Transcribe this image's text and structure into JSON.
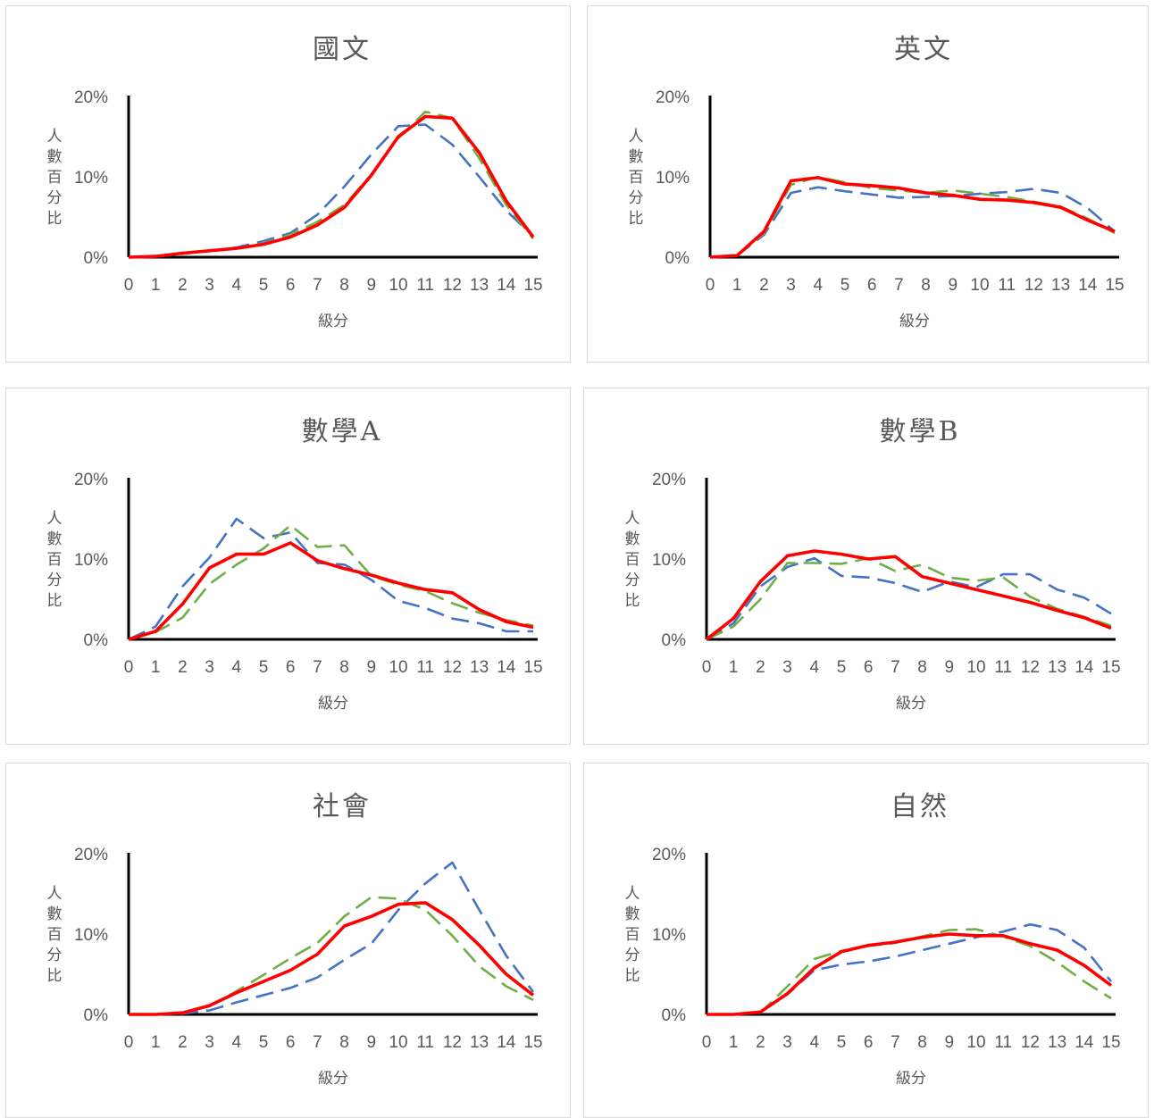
{
  "chart_data": [
    {
      "type": "line",
      "title": "國文",
      "xlabel": "級分",
      "ylabel": "人數百分比",
      "x": [
        0,
        1,
        2,
        3,
        4,
        5,
        6,
        7,
        8,
        9,
        10,
        11,
        12,
        13,
        14,
        15
      ],
      "ylim": [
        0,
        20
      ],
      "yticks": [
        "0%",
        "10%",
        "20%"
      ],
      "series": [
        {
          "color": "#ff0000",
          "style": "solid",
          "values": [
            0,
            0.1,
            0.5,
            0.8,
            1.1,
            1.6,
            2.5,
            4.0,
            6.2,
            10.2,
            15.0,
            17.5,
            17.3,
            13.0,
            7.0,
            2.5
          ]
        },
        {
          "color": "#4472c4",
          "style": "dashed",
          "values": [
            0,
            0.1,
            0.5,
            0.8,
            1.2,
            2.0,
            3.0,
            5.3,
            8.8,
            12.8,
            16.3,
            16.5,
            14.0,
            10.0,
            5.8,
            2.6
          ]
        },
        {
          "color": "#70ad47",
          "style": "dashed",
          "values": [
            0,
            0.1,
            0.4,
            0.8,
            1.1,
            1.7,
            2.8,
            4.4,
            6.5,
            10.3,
            14.8,
            18.1,
            17.3,
            12.3,
            6.5,
            2.3
          ]
        }
      ]
    },
    {
      "type": "line",
      "title": "英文",
      "xlabel": "級分",
      "ylabel": "人數百分比",
      "x": [
        0,
        1,
        2,
        3,
        4,
        5,
        6,
        7,
        8,
        9,
        10,
        11,
        12,
        13,
        14,
        15
      ],
      "ylim": [
        0,
        20
      ],
      "yticks": [
        "0%",
        "10%",
        "20%"
      ],
      "series": [
        {
          "color": "#ff0000",
          "style": "solid",
          "values": [
            0,
            0.2,
            3.2,
            9.5,
            9.9,
            9.1,
            8.9,
            8.6,
            8.0,
            7.7,
            7.2,
            7.1,
            6.8,
            6.2,
            4.6,
            3.2
          ]
        },
        {
          "color": "#4472c4",
          "style": "dashed",
          "values": [
            0,
            0.2,
            2.8,
            8.0,
            8.7,
            8.2,
            7.8,
            7.4,
            7.5,
            7.6,
            7.9,
            8.1,
            8.5,
            8.0,
            6.1,
            3.2
          ]
        },
        {
          "color": "#70ad47",
          "style": "dashed",
          "values": [
            0,
            0.2,
            3.0,
            9.0,
            10.0,
            9.3,
            8.6,
            8.3,
            8.0,
            8.3,
            7.9,
            7.5,
            6.9,
            6.3,
            4.8,
            3.0
          ]
        }
      ]
    },
    {
      "type": "line",
      "title": "數學A",
      "xlabel": "級分",
      "ylabel": "人數百分比",
      "x": [
        0,
        1,
        2,
        3,
        4,
        5,
        6,
        7,
        8,
        9,
        10,
        11,
        12,
        13,
        14,
        15
      ],
      "ylim": [
        0,
        20
      ],
      "yticks": [
        "0%",
        "10%",
        "20%"
      ],
      "series": [
        {
          "color": "#ff0000",
          "style": "solid",
          "values": [
            0,
            1.0,
            4.4,
            8.9,
            10.6,
            10.6,
            12.0,
            9.8,
            8.8,
            8.0,
            7.0,
            6.2,
            5.8,
            3.7,
            2.2,
            1.5
          ]
        },
        {
          "color": "#4472c4",
          "style": "dashed",
          "values": [
            0,
            1.6,
            6.6,
            10.2,
            15.0,
            12.6,
            13.3,
            9.5,
            9.3,
            7.4,
            4.8,
            3.9,
            2.6,
            2.0,
            1.0,
            1.0
          ]
        },
        {
          "color": "#70ad47",
          "style": "dashed",
          "values": [
            0,
            0.9,
            2.7,
            6.9,
            9.3,
            11.3,
            14.2,
            11.5,
            11.7,
            7.9,
            6.8,
            6.0,
            4.5,
            3.3,
            2.4,
            1.7
          ]
        }
      ]
    },
    {
      "type": "line",
      "title": "數學B",
      "xlabel": "級分",
      "ylabel": "人數百分比",
      "x": [
        0,
        1,
        2,
        3,
        4,
        5,
        6,
        7,
        8,
        9,
        10,
        11,
        12,
        13,
        14,
        15
      ],
      "ylim": [
        0,
        20
      ],
      "yticks": [
        "0%",
        "10%",
        "20%"
      ],
      "series": [
        {
          "color": "#ff0000",
          "style": "solid",
          "values": [
            0,
            2.6,
            7.2,
            10.4,
            11.0,
            10.6,
            10.0,
            10.3,
            7.8,
            7.0,
            6.2,
            5.4,
            4.6,
            3.6,
            2.7,
            1.4
          ]
        },
        {
          "color": "#4472c4",
          "style": "dashed",
          "values": [
            0,
            2.0,
            6.6,
            9.0,
            10.1,
            7.9,
            7.7,
            7.0,
            5.9,
            7.2,
            6.5,
            8.1,
            8.1,
            6.2,
            5.2,
            3.2
          ]
        },
        {
          "color": "#70ad47",
          "style": "dashed",
          "values": [
            0,
            1.6,
            5.0,
            9.5,
            9.5,
            9.4,
            10.1,
            8.5,
            9.3,
            7.7,
            7.3,
            7.7,
            5.3,
            3.8,
            2.8,
            1.7
          ]
        }
      ]
    },
    {
      "type": "line",
      "title": "社會",
      "xlabel": "級分",
      "ylabel": "人數百分比",
      "x": [
        0,
        1,
        2,
        3,
        4,
        5,
        6,
        7,
        8,
        9,
        10,
        11,
        12,
        13,
        14,
        15
      ],
      "ylim": [
        0,
        20
      ],
      "yticks": [
        "0%",
        "10%",
        "20%"
      ],
      "series": [
        {
          "color": "#ff0000",
          "style": "solid",
          "values": [
            0,
            0,
            0.2,
            1.1,
            2.7,
            4.1,
            5.5,
            7.5,
            11.0,
            12.2,
            13.7,
            13.9,
            11.8,
            8.6,
            5.0,
            2.4
          ]
        },
        {
          "color": "#4472c4",
          "style": "dashed",
          "values": [
            0,
            0,
            0.1,
            0.5,
            1.5,
            2.4,
            3.3,
            4.6,
            6.8,
            8.8,
            13.0,
            16.3,
            18.9,
            13.0,
            7.3,
            2.8
          ]
        },
        {
          "color": "#70ad47",
          "style": "dashed",
          "values": [
            0,
            0,
            0.2,
            1.0,
            2.9,
            4.9,
            7.0,
            8.9,
            12.2,
            14.6,
            14.4,
            13.0,
            9.8,
            6.0,
            3.5,
            1.8
          ]
        }
      ]
    },
    {
      "type": "line",
      "title": "自然",
      "xlabel": "級分",
      "ylabel": "人數百分比",
      "x": [
        0,
        1,
        2,
        3,
        4,
        5,
        6,
        7,
        8,
        9,
        10,
        11,
        12,
        13,
        14,
        15
      ],
      "ylim": [
        0,
        20
      ],
      "yticks": [
        "0%",
        "10%",
        "20%"
      ],
      "series": [
        {
          "color": "#ff0000",
          "style": "solid",
          "values": [
            0,
            0,
            0.3,
            2.6,
            5.8,
            7.8,
            8.6,
            9.0,
            9.6,
            10.0,
            9.8,
            9.8,
            8.8,
            8.0,
            6.1,
            3.6
          ]
        },
        {
          "color": "#4472c4",
          "style": "dashed",
          "values": [
            0,
            0,
            0.3,
            2.5,
            5.5,
            6.2,
            6.6,
            7.2,
            8.0,
            8.8,
            9.6,
            10.3,
            11.2,
            10.5,
            8.3,
            4.1
          ]
        },
        {
          "color": "#70ad47",
          "style": "dashed",
          "values": [
            0,
            0,
            0.2,
            3.5,
            6.9,
            7.9,
            8.5,
            8.9,
            9.7,
            10.5,
            10.6,
            9.7,
            8.5,
            6.5,
            4.1,
            2.0
          ]
        }
      ]
    }
  ]
}
